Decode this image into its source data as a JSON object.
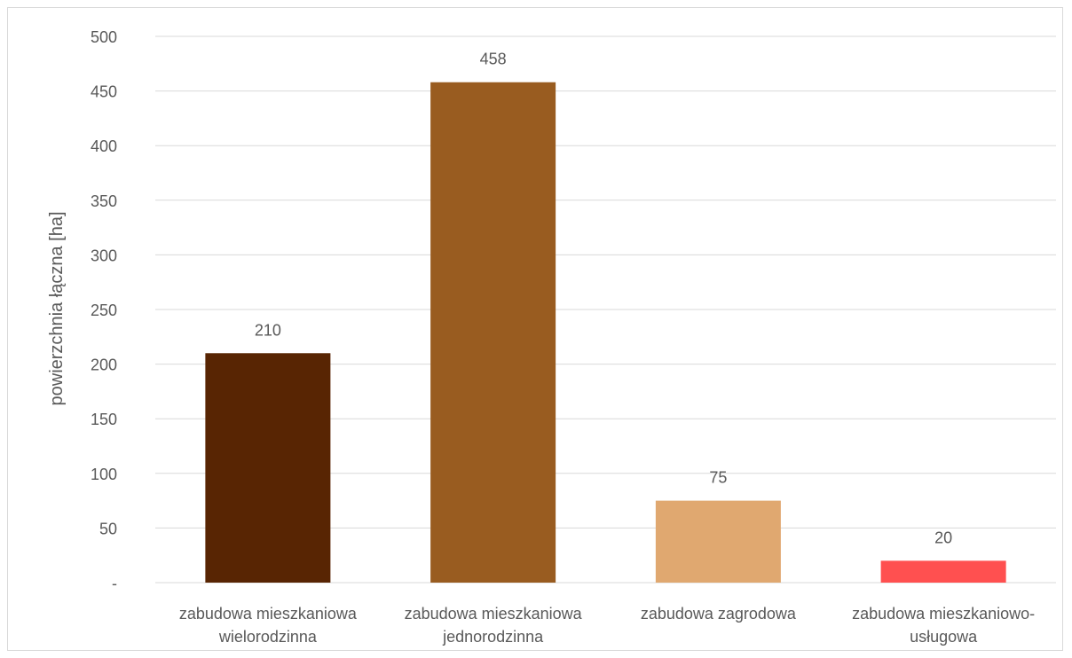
{
  "chart_data": {
    "type": "bar",
    "title": "",
    "xlabel": "",
    "ylabel": "powierzchnia łączna [ha]",
    "ylim": [
      0,
      500
    ],
    "yticks": [
      {
        "value": 0,
        "label": "-"
      },
      {
        "value": 50,
        "label": "50"
      },
      {
        "value": 100,
        "label": "100"
      },
      {
        "value": 150,
        "label": "150"
      },
      {
        "value": 200,
        "label": "200"
      },
      {
        "value": 250,
        "label": "250"
      },
      {
        "value": 300,
        "label": "300"
      },
      {
        "value": 350,
        "label": "350"
      },
      {
        "value": 400,
        "label": "400"
      },
      {
        "value": 450,
        "label": "450"
      },
      {
        "value": 500,
        "label": "500"
      }
    ],
    "grid": true,
    "legend": "none",
    "categories": [
      [
        "zabudowa mieszkaniowa",
        "wielorodzinna"
      ],
      [
        "zabudowa mieszkaniowa",
        "jednorodzinna"
      ],
      [
        "zabudowa zagrodowa"
      ],
      [
        "zabudowa mieszkaniowo-",
        "usługowa"
      ]
    ],
    "values": [
      210,
      458,
      75,
      20
    ],
    "data_labels": [
      "210",
      "458",
      "75",
      "20"
    ],
    "colors": [
      "#582503",
      "#995C20",
      "#E0A870",
      "#FF5050"
    ],
    "gridline_color": "#d9d9d9"
  }
}
